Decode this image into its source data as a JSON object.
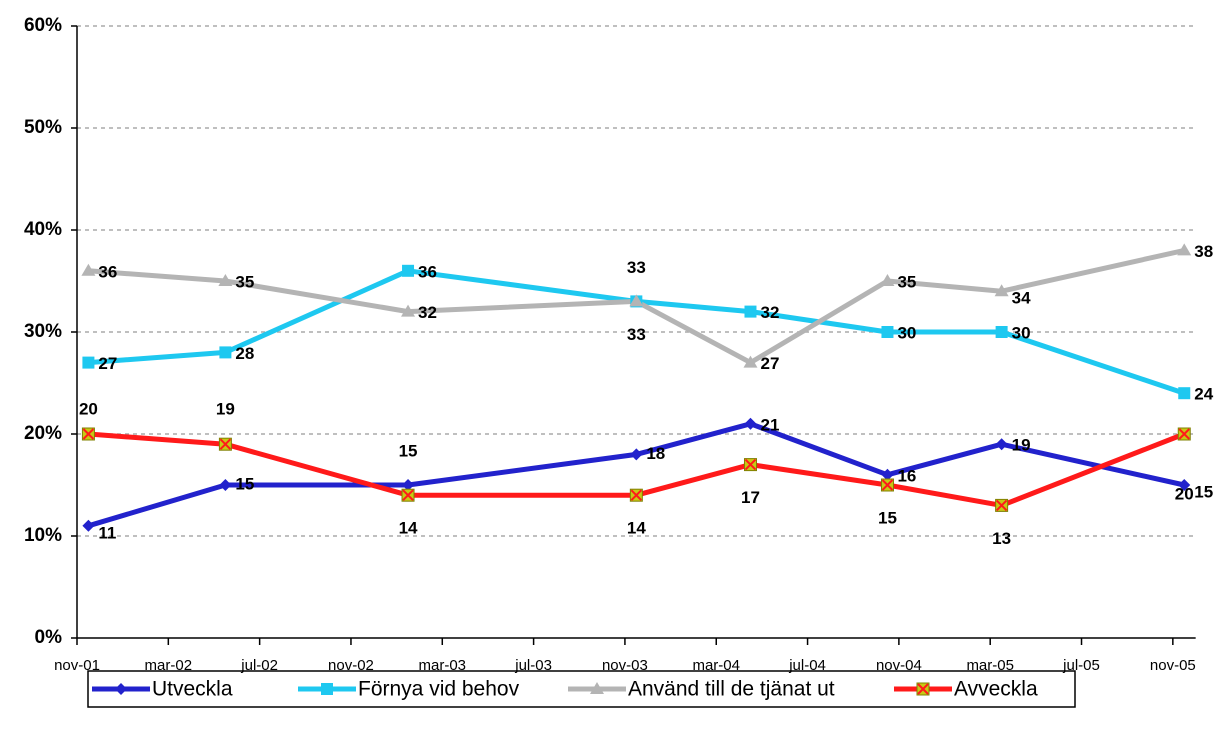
{
  "chart_data": {
    "type": "line",
    "x": [
      "2001-11",
      "2002-05",
      "2003-01",
      "2003-11",
      "2004-04",
      "2004-10",
      "2005-03",
      "2005-11"
    ],
    "series": [
      {
        "name": "Utveckla",
        "color": "#2222cc",
        "marker": "diamond",
        "values": [
          11,
          15,
          15,
          18,
          21,
          16,
          19,
          15
        ]
      },
      {
        "name": "Förnya vid behov",
        "color": "#1ec8f0",
        "marker": "square",
        "values": [
          27,
          28,
          36,
          33,
          32,
          30,
          30,
          24
        ]
      },
      {
        "name": "Använd till de tjänat ut",
        "color": "#b4b4b4",
        "marker": "triangle",
        "values": [
          36,
          35,
          32,
          33,
          27,
          35,
          34,
          38
        ]
      },
      {
        "name": "Avveckla",
        "color": "#ff1a1a",
        "marker": "x-square",
        "values": [
          20,
          19,
          14,
          14,
          17,
          15,
          13,
          20
        ]
      }
    ],
    "xlim": [
      "2001-11",
      "2005-12"
    ],
    "xticks": [
      {
        "value": "2001-11",
        "label": "nov-01"
      },
      {
        "value": "2002-03",
        "label": "mar-02"
      },
      {
        "value": "2002-07",
        "label": "jul-02"
      },
      {
        "value": "2002-11",
        "label": "nov-02"
      },
      {
        "value": "2003-03",
        "label": "mar-03"
      },
      {
        "value": "2003-07",
        "label": "jul-03"
      },
      {
        "value": "2003-11",
        "label": "nov-03"
      },
      {
        "value": "2004-03",
        "label": "mar-04"
      },
      {
        "value": "2004-07",
        "label": "jul-04"
      },
      {
        "value": "2004-11",
        "label": "nov-04"
      },
      {
        "value": "2005-03",
        "label": "mar-05"
      },
      {
        "value": "2005-07",
        "label": "jul-05"
      },
      {
        "value": "2005-11",
        "label": "nov-05"
      }
    ],
    "ylim": [
      0,
      60
    ],
    "yticks": [
      {
        "value": 0,
        "label": "0%"
      },
      {
        "value": 10,
        "label": "10%"
      },
      {
        "value": 20,
        "label": "20%"
      },
      {
        "value": 30,
        "label": "30%"
      },
      {
        "value": 40,
        "label": "40%"
      },
      {
        "value": 50,
        "label": "50%"
      },
      {
        "value": 60,
        "label": "60%"
      }
    ],
    "grid": true,
    "legend": "bottom"
  }
}
